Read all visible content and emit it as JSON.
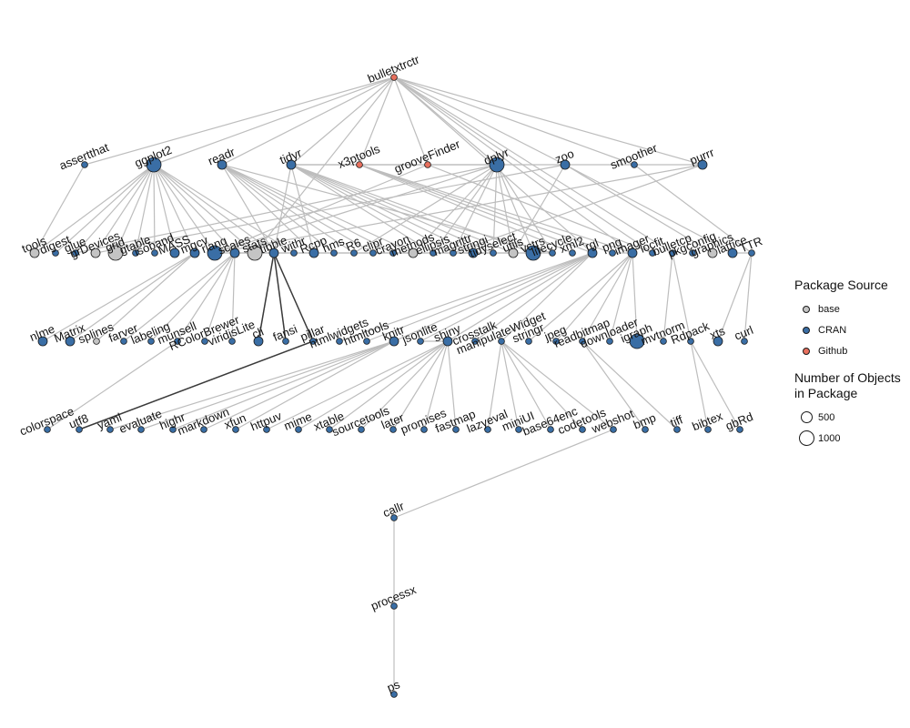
{
  "diagram": {
    "colors": {
      "base": "#c4c4c4",
      "CRAN": "#3a6ea5",
      "Github": "#e8705e",
      "edge": "#bdbdbd",
      "edge_dark": "#3a3a3a"
    },
    "nodes": [
      {
        "id": "bulletxtrctr",
        "src": "Github",
        "size": "small"
      },
      {
        "id": "assertthat",
        "src": "CRAN",
        "size": "small"
      },
      {
        "id": "ggplot2",
        "src": "CRAN",
        "size": "large"
      },
      {
        "id": "readr",
        "src": "CRAN",
        "size": "medium"
      },
      {
        "id": "tidyr",
        "src": "CRAN",
        "size": "medium"
      },
      {
        "id": "x3ptools",
        "src": "Github",
        "size": "small"
      },
      {
        "id": "grooveFinder",
        "src": "Github",
        "size": "small"
      },
      {
        "id": "dplyr",
        "src": "CRAN",
        "size": "large"
      },
      {
        "id": "zoo",
        "src": "CRAN",
        "size": "medium"
      },
      {
        "id": "smoother",
        "src": "CRAN",
        "size": "small"
      },
      {
        "id": "purrr",
        "src": "CRAN",
        "size": "medium"
      },
      {
        "id": "tools",
        "src": "base",
        "size": "medium"
      },
      {
        "id": "digest",
        "src": "CRAN",
        "size": "small"
      },
      {
        "id": "glue",
        "src": "CRAN",
        "size": "small"
      },
      {
        "id": "grDevices",
        "src": "base",
        "size": "medium"
      },
      {
        "id": "grid",
        "src": "base",
        "size": "large"
      },
      {
        "id": "gtable",
        "src": "CRAN",
        "size": "small"
      },
      {
        "id": "isoband",
        "src": "CRAN",
        "size": "small"
      },
      {
        "id": "MASS",
        "src": "CRAN",
        "size": "medium"
      },
      {
        "id": "mgcv",
        "src": "CRAN",
        "size": "medium"
      },
      {
        "id": "rlang",
        "src": "CRAN",
        "size": "large"
      },
      {
        "id": "scales",
        "src": "CRAN",
        "size": "medium"
      },
      {
        "id": "stats",
        "src": "base",
        "size": "large"
      },
      {
        "id": "tibble",
        "src": "CRAN",
        "size": "medium"
      },
      {
        "id": "withr",
        "src": "CRAN",
        "size": "small"
      },
      {
        "id": "Rcpp",
        "src": "CRAN",
        "size": "medium"
      },
      {
        "id": "hms",
        "src": "CRAN",
        "size": "small"
      },
      {
        "id": "R6",
        "src": "CRAN",
        "size": "small"
      },
      {
        "id": "clipr",
        "src": "CRAN",
        "size": "small"
      },
      {
        "id": "crayon",
        "src": "CRAN",
        "size": "small"
      },
      {
        "id": "methods",
        "src": "base",
        "size": "medium"
      },
      {
        "id": "ellipsis",
        "src": "CRAN",
        "size": "small"
      },
      {
        "id": "magrittr",
        "src": "CRAN",
        "size": "small"
      },
      {
        "id": "stringi",
        "src": "CRAN",
        "size": "medium"
      },
      {
        "id": "tidyselect",
        "src": "CRAN",
        "size": "small"
      },
      {
        "id": "utils",
        "src": "base",
        "size": "medium"
      },
      {
        "id": "vctrs",
        "src": "CRAN",
        "size": "large"
      },
      {
        "id": "lifecycle",
        "src": "CRAN",
        "size": "small"
      },
      {
        "id": "xml2",
        "src": "CRAN",
        "size": "small"
      },
      {
        "id": "rgl",
        "src": "CRAN",
        "size": "medium"
      },
      {
        "id": "png",
        "src": "CRAN",
        "size": "small"
      },
      {
        "id": "imager",
        "src": "CRAN",
        "size": "medium"
      },
      {
        "id": "locfit",
        "src": "CRAN",
        "size": "small"
      },
      {
        "id": "bulletcp",
        "src": "CRAN",
        "size": "small"
      },
      {
        "id": "pkgconfig",
        "src": "CRAN",
        "size": "small"
      },
      {
        "id": "graphics",
        "src": "base",
        "size": "medium"
      },
      {
        "id": "lattice",
        "src": "CRAN",
        "size": "medium"
      },
      {
        "id": "TTR",
        "src": "CRAN",
        "size": "small"
      },
      {
        "id": "nlme",
        "src": "CRAN",
        "size": "medium"
      },
      {
        "id": "Matrix",
        "src": "CRAN",
        "size": "medium"
      },
      {
        "id": "splines",
        "src": "base",
        "size": "small"
      },
      {
        "id": "farver",
        "src": "CRAN",
        "size": "small"
      },
      {
        "id": "labeling",
        "src": "CRAN",
        "size": "small"
      },
      {
        "id": "munsell",
        "src": "CRAN",
        "size": "small"
      },
      {
        "id": "RColorBrewer",
        "src": "CRAN",
        "size": "small"
      },
      {
        "id": "viridisLite",
        "src": "CRAN",
        "size": "small"
      },
      {
        "id": "cli",
        "src": "CRAN",
        "size": "medium"
      },
      {
        "id": "fansi",
        "src": "CRAN",
        "size": "small"
      },
      {
        "id": "pillar",
        "src": "CRAN",
        "size": "small"
      },
      {
        "id": "htmlwidgets",
        "src": "CRAN",
        "size": "small"
      },
      {
        "id": "htmltools",
        "src": "CRAN",
        "size": "small"
      },
      {
        "id": "knitr",
        "src": "CRAN",
        "size": "medium"
      },
      {
        "id": "jsonlite",
        "src": "CRAN",
        "size": "small"
      },
      {
        "id": "shiny",
        "src": "CRAN",
        "size": "medium"
      },
      {
        "id": "crosstalk",
        "src": "CRAN",
        "size": "small"
      },
      {
        "id": "manipulateWidget",
        "src": "CRAN",
        "size": "small"
      },
      {
        "id": "stringr",
        "src": "CRAN",
        "size": "small"
      },
      {
        "id": "jpeg",
        "src": "CRAN",
        "size": "small"
      },
      {
        "id": "readbitmap",
        "src": "CRAN",
        "size": "small"
      },
      {
        "id": "downloader",
        "src": "CRAN",
        "size": "small"
      },
      {
        "id": "igraph",
        "src": "CRAN",
        "size": "large"
      },
      {
        "id": "mvtnorm",
        "src": "CRAN",
        "size": "small"
      },
      {
        "id": "Rdpack",
        "src": "CRAN",
        "size": "small"
      },
      {
        "id": "xts",
        "src": "CRAN",
        "size": "medium"
      },
      {
        "id": "curl",
        "src": "CRAN",
        "size": "small"
      },
      {
        "id": "colorspace",
        "src": "CRAN",
        "size": "small"
      },
      {
        "id": "utf8",
        "src": "CRAN",
        "size": "small"
      },
      {
        "id": "yaml",
        "src": "CRAN",
        "size": "small"
      },
      {
        "id": "evaluate",
        "src": "CRAN",
        "size": "small"
      },
      {
        "id": "highr",
        "src": "CRAN",
        "size": "small"
      },
      {
        "id": "markdown",
        "src": "CRAN",
        "size": "small"
      },
      {
        "id": "xfun",
        "src": "CRAN",
        "size": "small"
      },
      {
        "id": "httpuv",
        "src": "CRAN",
        "size": "small"
      },
      {
        "id": "mime",
        "src": "CRAN",
        "size": "small"
      },
      {
        "id": "xtable",
        "src": "CRAN",
        "size": "small"
      },
      {
        "id": "sourcetools",
        "src": "CRAN",
        "size": "small"
      },
      {
        "id": "later",
        "src": "CRAN",
        "size": "small"
      },
      {
        "id": "promises",
        "src": "CRAN",
        "size": "small"
      },
      {
        "id": "fastmap",
        "src": "CRAN",
        "size": "small"
      },
      {
        "id": "lazyeval",
        "src": "CRAN",
        "size": "small"
      },
      {
        "id": "miniUI",
        "src": "CRAN",
        "size": "small"
      },
      {
        "id": "base64enc",
        "src": "CRAN",
        "size": "small"
      },
      {
        "id": "codetools",
        "src": "CRAN",
        "size": "small"
      },
      {
        "id": "webshot",
        "src": "CRAN",
        "size": "small"
      },
      {
        "id": "bmp",
        "src": "CRAN",
        "size": "small"
      },
      {
        "id": "tiff",
        "src": "CRAN",
        "size": "small"
      },
      {
        "id": "bibtex",
        "src": "CRAN",
        "size": "small"
      },
      {
        "id": "gbRd",
        "src": "CRAN",
        "size": "small"
      },
      {
        "id": "callr",
        "src": "CRAN",
        "size": "small"
      },
      {
        "id": "processx",
        "src": "CRAN",
        "size": "small"
      },
      {
        "id": "ps",
        "src": "CRAN",
        "size": "small"
      }
    ],
    "edges": [
      [
        "bulletxtrctr",
        "assertthat"
      ],
      [
        "bulletxtrctr",
        "ggplot2"
      ],
      [
        "bulletxtrctr",
        "readr"
      ],
      [
        "bulletxtrctr",
        "tidyr"
      ],
      [
        "bulletxtrctr",
        "x3ptools"
      ],
      [
        "bulletxtrctr",
        "grooveFinder"
      ],
      [
        "bulletxtrctr",
        "dplyr"
      ],
      [
        "bulletxtrctr",
        "zoo"
      ],
      [
        "bulletxtrctr",
        "smoother"
      ],
      [
        "bulletxtrctr",
        "purrr"
      ],
      [
        "bulletxtrctr",
        "imager"
      ],
      [
        "bulletxtrctr",
        "bulletcp"
      ],
      [
        "bulletxtrctr",
        "stats"
      ],
      [
        "bulletxtrctr",
        "rgl"
      ],
      [
        "bulletxtrctr",
        "locfit"
      ],
      [
        "assertthat",
        "tools"
      ],
      [
        "ggplot2",
        "digest"
      ],
      [
        "ggplot2",
        "glue"
      ],
      [
        "ggplot2",
        "grDevices"
      ],
      [
        "ggplot2",
        "grid"
      ],
      [
        "ggplot2",
        "gtable"
      ],
      [
        "ggplot2",
        "isoband"
      ],
      [
        "ggplot2",
        "MASS"
      ],
      [
        "ggplot2",
        "mgcv"
      ],
      [
        "ggplot2",
        "rlang"
      ],
      [
        "ggplot2",
        "scales"
      ],
      [
        "ggplot2",
        "stats"
      ],
      [
        "ggplot2",
        "tibble"
      ],
      [
        "ggplot2",
        "withr"
      ],
      [
        "ggplot2",
        "tools"
      ],
      [
        "readr",
        "Rcpp"
      ],
      [
        "readr",
        "hms"
      ],
      [
        "readr",
        "R6"
      ],
      [
        "readr",
        "clipr"
      ],
      [
        "readr",
        "crayon"
      ],
      [
        "readr",
        "tibble"
      ],
      [
        "readr",
        "methods"
      ],
      [
        "readr",
        "lifecycle"
      ],
      [
        "tidyr",
        "dplyr"
      ],
      [
        "tidyr",
        "ellipsis"
      ],
      [
        "tidyr",
        "magrittr"
      ],
      [
        "tidyr",
        "stringi"
      ],
      [
        "tidyr",
        "tidyselect"
      ],
      [
        "tidyr",
        "vctrs"
      ],
      [
        "tidyr",
        "purrr"
      ],
      [
        "tidyr",
        "tibble"
      ],
      [
        "tidyr",
        "Rcpp"
      ],
      [
        "tidyr",
        "utils"
      ],
      [
        "x3ptools",
        "xml2"
      ],
      [
        "x3ptools",
        "rgl"
      ],
      [
        "x3ptools",
        "png"
      ],
      [
        "x3ptools",
        "imager"
      ],
      [
        "grooveFinder",
        "locfit"
      ],
      [
        "grooveFinder",
        "rlang"
      ],
      [
        "dplyr",
        "ellipsis"
      ],
      [
        "dplyr",
        "magrittr"
      ],
      [
        "dplyr",
        "tidyselect"
      ],
      [
        "dplyr",
        "vctrs"
      ],
      [
        "dplyr",
        "rlang"
      ],
      [
        "dplyr",
        "R6"
      ],
      [
        "dplyr",
        "methods"
      ],
      [
        "dplyr",
        "utils"
      ],
      [
        "dplyr",
        "glue"
      ],
      [
        "dplyr",
        "lifecycle"
      ],
      [
        "zoo",
        "lattice"
      ],
      [
        "zoo",
        "utils"
      ],
      [
        "zoo",
        "graphics"
      ],
      [
        "zoo",
        "grDevices"
      ],
      [
        "smoother",
        "TTR"
      ],
      [
        "purrr",
        "magrittr"
      ],
      [
        "purrr",
        "rlang"
      ],
      [
        "mgcv",
        "nlme"
      ],
      [
        "mgcv",
        "Matrix"
      ],
      [
        "mgcv",
        "splines"
      ],
      [
        "rlang",
        "utils"
      ],
      [
        "scales",
        "farver"
      ],
      [
        "scales",
        "labeling"
      ],
      [
        "scales",
        "munsell"
      ],
      [
        "scales",
        "RColorBrewer"
      ],
      [
        "scales",
        "viridisLite"
      ],
      [
        "scales",
        "lifecycle"
      ],
      [
        "tibble",
        "cli"
      ],
      [
        "tibble",
        "fansi"
      ],
      [
        "tibble",
        "pillar"
      ],
      [
        "rgl",
        "htmlwidgets"
      ],
      [
        "rgl",
        "htmltools"
      ],
      [
        "rgl",
        "knitr"
      ],
      [
        "rgl",
        "jsonlite"
      ],
      [
        "rgl",
        "shiny"
      ],
      [
        "rgl",
        "crosstalk"
      ],
      [
        "rgl",
        "manipulateWidget"
      ],
      [
        "imager",
        "stringr"
      ],
      [
        "imager",
        "jpeg"
      ],
      [
        "imager",
        "readbitmap"
      ],
      [
        "imager",
        "downloader"
      ],
      [
        "imager",
        "igraph"
      ],
      [
        "imager",
        "png"
      ],
      [
        "bulletcp",
        "mvtnorm"
      ],
      [
        "bulletcp",
        "Rdpack"
      ],
      [
        "TTR",
        "xts"
      ],
      [
        "TTR",
        "curl"
      ],
      [
        "lattice",
        "TTR"
      ],
      [
        "munsell",
        "colorspace"
      ],
      [
        "shiny",
        "httpuv"
      ],
      [
        "shiny",
        "mime"
      ],
      [
        "shiny",
        "xtable"
      ],
      [
        "shiny",
        "sourcetools"
      ],
      [
        "shiny",
        "later"
      ],
      [
        "shiny",
        "promises"
      ],
      [
        "shiny",
        "fastmap"
      ],
      [
        "shiny",
        "jsonlite"
      ],
      [
        "knitr",
        "evaluate"
      ],
      [
        "knitr",
        "highr"
      ],
      [
        "knitr",
        "markdown"
      ],
      [
        "knitr",
        "xfun"
      ],
      [
        "knitr",
        "yaml"
      ],
      [
        "manipulateWidget",
        "lazyeval"
      ],
      [
        "manipulateWidget",
        "miniUI"
      ],
      [
        "manipulateWidget",
        "base64enc"
      ],
      [
        "manipulateWidget",
        "codetools"
      ],
      [
        "manipulateWidget",
        "webshot"
      ],
      [
        "readbitmap",
        "bmp"
      ],
      [
        "readbitmap",
        "tiff"
      ],
      [
        "Rdpack",
        "bibtex"
      ],
      [
        "Rdpack",
        "gbRd"
      ],
      [
        "webshot",
        "callr"
      ],
      [
        "callr",
        "processx"
      ],
      [
        "processx",
        "ps"
      ]
    ],
    "dark_edges": [
      [
        "tibble",
        "cli"
      ],
      [
        "tibble",
        "fansi"
      ],
      [
        "tibble",
        "pillar"
      ],
      [
        "pillar",
        "utf8"
      ]
    ]
  },
  "legend": {
    "source_title": "Package Source",
    "sources": [
      {
        "label": "base",
        "color": "#c4c4c4"
      },
      {
        "label": "CRAN",
        "color": "#3a6ea5"
      },
      {
        "label": "Github",
        "color": "#e8705e"
      }
    ],
    "size_title_line1": "Number of Objects",
    "size_title_line2": "in Package",
    "sizes": [
      {
        "label": "500"
      },
      {
        "label": "1000"
      }
    ]
  }
}
